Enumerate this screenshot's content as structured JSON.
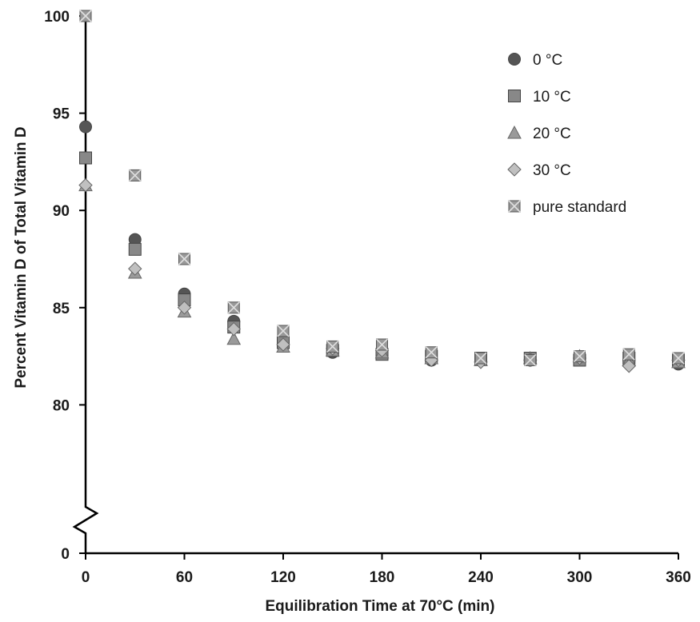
{
  "chart_data": {
    "type": "scatter",
    "xlabel": "Equilibration Time at 70°C (min)",
    "ylabel": "Percent Vitamin D of Total Vitamin D",
    "x_ticks": [
      "0",
      "60",
      "120",
      "180",
      "240",
      "300",
      "360"
    ],
    "y_ticks": [
      "0",
      "80",
      "85",
      "90",
      "95",
      "100"
    ],
    "xlim": [
      0,
      360
    ],
    "ylim": [
      75,
      100
    ],
    "y_axis_break": true,
    "grid": false,
    "legend_position": "top-right",
    "series": [
      {
        "name": "0 °C",
        "marker": "circle",
        "color": "#555555",
        "x": [
          0,
          30,
          60,
          90,
          120,
          150,
          180,
          210,
          240,
          270,
          300,
          330,
          360
        ],
        "y": [
          94.3,
          88.5,
          85.7,
          84.3,
          83.3,
          82.7,
          82.7,
          82.3,
          82.3,
          82.3,
          82.4,
          82.3,
          82.1
        ]
      },
      {
        "name": "10 °C",
        "marker": "square",
        "color": "#888888",
        "x": [
          0,
          30,
          60,
          90,
          120,
          150,
          180,
          210,
          240,
          270,
          300,
          330,
          360
        ],
        "y": [
          92.7,
          88.0,
          85.4,
          84.0,
          83.2,
          82.8,
          82.6,
          82.5,
          82.4,
          82.4,
          82.3,
          82.4,
          82.3
        ]
      },
      {
        "name": "20 °C",
        "marker": "triangle",
        "color": "#9a9a9a",
        "x": [
          0,
          30,
          60,
          90,
          120,
          150,
          180,
          210,
          240,
          270,
          300,
          330,
          360
        ],
        "y": [
          91.3,
          86.8,
          84.8,
          83.4,
          83.0,
          82.8,
          82.7,
          82.4,
          82.3,
          82.4,
          82.5,
          82.3,
          82.2
        ]
      },
      {
        "name": "30 °C",
        "marker": "diamond",
        "color": "#c0c0c0",
        "x": [
          0,
          30,
          60,
          90,
          120,
          150,
          180,
          210,
          240,
          270,
          300,
          330,
          360
        ],
        "y": [
          91.3,
          87.0,
          85.0,
          83.9,
          83.1,
          82.9,
          82.8,
          82.3,
          82.2,
          82.3,
          82.4,
          82.0,
          82.3
        ]
      },
      {
        "name": "pure standard",
        "marker": "x-square",
        "color": "#999999",
        "x": [
          0,
          30,
          60,
          90,
          120,
          150,
          180,
          210,
          240,
          270,
          300,
          330,
          360
        ],
        "y": [
          100.0,
          91.8,
          87.5,
          85.0,
          83.8,
          83.0,
          83.1,
          82.7,
          82.4,
          82.3,
          82.5,
          82.6,
          82.4
        ]
      }
    ]
  }
}
